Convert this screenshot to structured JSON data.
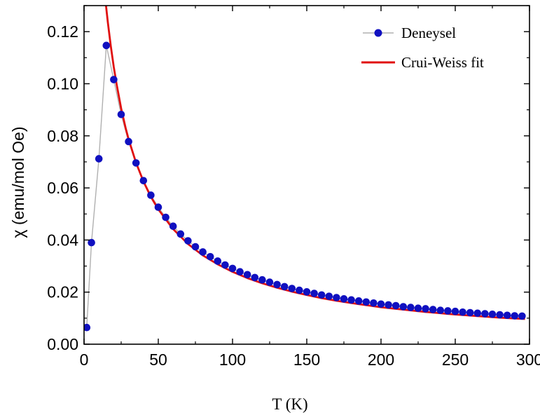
{
  "chart_data": {
    "type": "scatter",
    "xlabel": "T (K)",
    "ylabel": "χ (emu/mol Oe)",
    "xlim": [
      0,
      300
    ],
    "ylim": [
      0,
      0.13
    ],
    "x_ticks": [
      0,
      50,
      100,
      150,
      200,
      250,
      300
    ],
    "x_tick_labels": [
      "0",
      "50",
      "100",
      "150",
      "200",
      "250",
      "300"
    ],
    "y_ticks": [
      0,
      0.02,
      0.04,
      0.06,
      0.08,
      0.1,
      0.12
    ],
    "y_tick_labels": [
      "0.00",
      "0.02",
      "0.04",
      "0.06",
      "0.08",
      "0.10",
      "0.12"
    ],
    "grid": false,
    "legend_position": "top-right",
    "colors": {
      "data": "#1010c0",
      "data_line": "#b0b0b0",
      "fit": "#e01010"
    },
    "series": [
      {
        "name": "Deneysel",
        "kind": "scatter-line",
        "x": [
          1.8,
          5,
          10,
          15,
          20,
          25,
          30,
          35,
          40,
          45,
          50,
          55,
          60,
          65,
          70,
          75,
          80,
          85,
          90,
          95,
          100,
          105,
          110,
          115,
          120,
          125,
          130,
          135,
          140,
          145,
          150,
          155,
          160,
          165,
          170,
          175,
          180,
          185,
          190,
          195,
          200,
          205,
          210,
          215,
          220,
          225,
          230,
          235,
          240,
          245,
          250,
          255,
          260,
          265,
          270,
          275,
          280,
          285,
          290,
          295
        ],
        "y": [
          0.0064,
          0.039,
          0.0712,
          0.1147,
          0.1016,
          0.0882,
          0.0778,
          0.0696,
          0.0628,
          0.0572,
          0.0526,
          0.0487,
          0.0453,
          0.0423,
          0.0397,
          0.0374,
          0.0354,
          0.0336,
          0.0319,
          0.0304,
          0.0291,
          0.0278,
          0.0267,
          0.0256,
          0.0247,
          0.0238,
          0.0229,
          0.0221,
          0.0214,
          0.0207,
          0.0201,
          0.0195,
          0.0189,
          0.0184,
          0.0179,
          0.0174,
          0.017,
          0.0166,
          0.0162,
          0.0158,
          0.0154,
          0.0151,
          0.0148,
          0.0144,
          0.0141,
          0.0138,
          0.0136,
          0.0133,
          0.013,
          0.0128,
          0.0126,
          0.0123,
          0.0121,
          0.0119,
          0.0117,
          0.0115,
          0.0113,
          0.0111,
          0.0109,
          0.0108
        ]
      },
      {
        "name": "Crui-Weiss fit",
        "kind": "line",
        "x": [
          14.8,
          16,
          18,
          20,
          22,
          25,
          28,
          30,
          35,
          40,
          45,
          50,
          60,
          70,
          80,
          90,
          100,
          110,
          120,
          130,
          140,
          150,
          160,
          170,
          180,
          190,
          200,
          210,
          220,
          230,
          240,
          250,
          260,
          270,
          280,
          290,
          297
        ],
        "y": [
          0.1299,
          0.1237,
          0.1145,
          0.1065,
          0.0996,
          0.0905,
          0.083,
          0.0787,
          0.0697,
          0.0625,
          0.0566,
          0.0518,
          0.0442,
          0.0385,
          0.0341,
          0.0307,
          0.0278,
          0.0254,
          0.0234,
          0.0217,
          0.0202,
          0.0189,
          0.0177,
          0.0167,
          0.0158,
          0.015,
          0.0142,
          0.0136,
          0.013,
          0.0124,
          0.0119,
          0.0114,
          0.011,
          0.0106,
          0.0102,
          0.0099,
          0.0097
        ]
      }
    ]
  }
}
